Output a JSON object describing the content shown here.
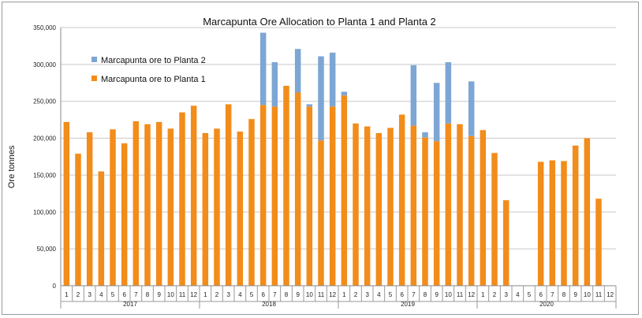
{
  "chart_data": {
    "type": "bar",
    "stacked": true,
    "title": "Marcapunta Ore Allocation to Planta 1 and Planta 2",
    "ylabel": "Ore tonnes",
    "xlabel": "",
    "ylim": [
      0,
      350000
    ],
    "yticks": [
      "0",
      "50,000",
      "100,000",
      "150,000",
      "200,000",
      "250,000",
      "300,000",
      "350,000"
    ],
    "ytick_values": [
      0,
      50000,
      100000,
      150000,
      200000,
      250000,
      300000,
      350000
    ],
    "grid": true,
    "legend_position": "top-left",
    "years": [
      "2017",
      "2018",
      "2019",
      "2020"
    ],
    "months": [
      "1",
      "2",
      "3",
      "4",
      "5",
      "6",
      "7",
      "8",
      "9",
      "10",
      "11",
      "12"
    ],
    "series": [
      {
        "name": "Marcapunta ore to Planta 1",
        "color": "#F28C1A",
        "values": [
          222000,
          179000,
          208000,
          155000,
          212000,
          193000,
          223000,
          219000,
          222000,
          213000,
          235000,
          244000,
          207000,
          213000,
          246000,
          209000,
          226000,
          245000,
          243000,
          271000,
          262000,
          243000,
          197000,
          243000,
          258000,
          220000,
          216000,
          207000,
          214000,
          232000,
          217000,
          201000,
          196000,
          220000,
          219000,
          203000,
          211000,
          180000,
          116000,
          0,
          0,
          168000,
          170000,
          169000,
          190000,
          200000,
          118000,
          0
        ]
      },
      {
        "name": "Marcapunta ore to Planta 2",
        "color": "#7DA6D4",
        "values": [
          0,
          0,
          0,
          0,
          0,
          0,
          0,
          0,
          0,
          0,
          0,
          0,
          0,
          0,
          0,
          0,
          0,
          98000,
          60000,
          0,
          59000,
          3000,
          114000,
          73000,
          5000,
          0,
          0,
          0,
          0,
          0,
          82000,
          7000,
          79000,
          83000,
          0,
          74000,
          0,
          0,
          0,
          0,
          0,
          0,
          0,
          0,
          0,
          0,
          0,
          0
        ]
      }
    ]
  }
}
